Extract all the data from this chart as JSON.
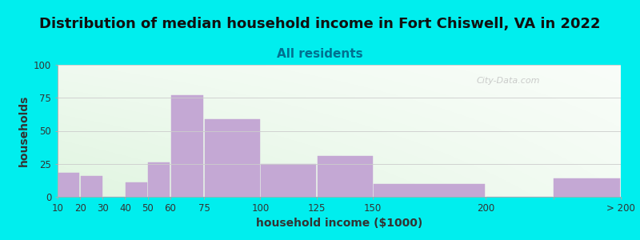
{
  "title": "Distribution of median household income in Fort Chiswell, VA in 2022",
  "subtitle": "All residents",
  "xlabel": "household income ($1000)",
  "ylabel": "households",
  "tick_positions": [
    10,
    20,
    30,
    40,
    50,
    60,
    75,
    100,
    125,
    150,
    200,
    230,
    260
  ],
  "tick_labels": [
    "10",
    "20",
    "30",
    "40",
    "50",
    "60",
    "75",
    "100",
    "125",
    "150",
    "200",
    "",
    "> 200"
  ],
  "bar_lefts": [
    10,
    20,
    30,
    40,
    50,
    60,
    75,
    100,
    125,
    150,
    200,
    230
  ],
  "bar_rights": [
    20,
    30,
    40,
    50,
    60,
    75,
    100,
    125,
    150,
    200,
    230,
    260
  ],
  "values": [
    18,
    16,
    0,
    11,
    26,
    77,
    59,
    25,
    31,
    10,
    0,
    14
  ],
  "bar_color": "#C4A8D4",
  "background_outer": "#00EEEE",
  "ylim": [
    0,
    100
  ],
  "yticks": [
    0,
    25,
    50,
    75,
    100
  ],
  "xlim": [
    10,
    260
  ],
  "watermark": "City-Data.com",
  "title_fontsize": 13,
  "subtitle_fontsize": 11,
  "label_fontsize": 10
}
